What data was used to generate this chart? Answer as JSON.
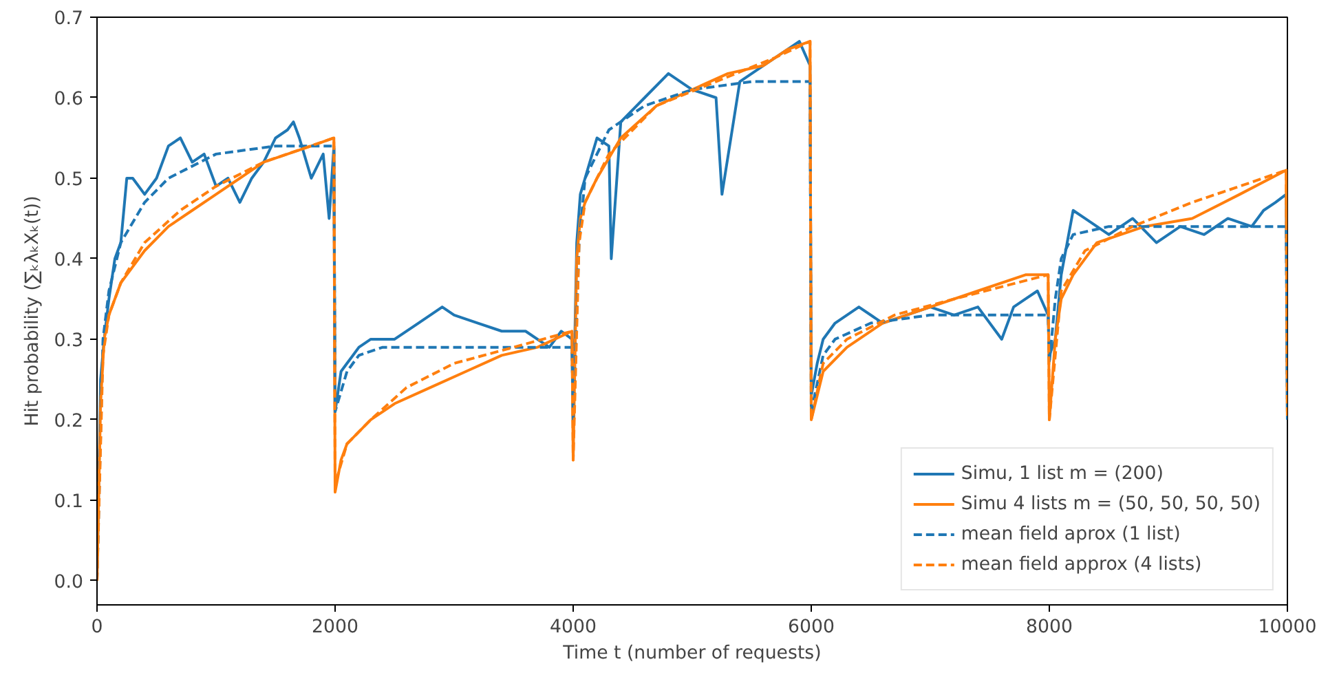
{
  "chart_data": {
    "type": "line",
    "xlabel": "Time t (number of requests)",
    "ylabel": "Hit probability (∑ₖλₖXₖ(t))",
    "xlim": [
      0,
      10000
    ],
    "ylim": [
      -0.03,
      0.7
    ],
    "xticks": [
      0,
      2000,
      4000,
      6000,
      8000,
      10000
    ],
    "yticks": [
      {
        "value": 0,
        "label": "0.0"
      },
      0.1,
      0.2,
      0.3,
      0.4,
      0.5,
      0.6,
      0.7
    ],
    "grid": false,
    "legend": "bottom right",
    "series": [
      {
        "name": "Simu, 1 list m = (200)",
        "color": "#1f77b4",
        "line_style": "solid",
        "x": [
          0,
          30,
          60,
          100,
          150,
          200,
          250,
          300,
          400,
          500,
          600,
          700,
          800,
          900,
          1000,
          1100,
          1200,
          1300,
          1400,
          1500,
          1600,
          1650,
          1700,
          1800,
          1900,
          1950,
          1990,
          2000,
          2050,
          2100,
          2200,
          2300,
          2500,
          2700,
          2900,
          3000,
          3200,
          3400,
          3600,
          3800,
          3900,
          3990,
          4000,
          4030,
          4060,
          4100,
          4200,
          4300,
          4320,
          4400,
          4600,
          4800,
          5000,
          5200,
          5250,
          5400,
          5600,
          5800,
          5900,
          5990,
          6000,
          6050,
          6100,
          6200,
          6400,
          6600,
          6800,
          7000,
          7200,
          7400,
          7600,
          7700,
          7800,
          7900,
          7990,
          8000,
          8050,
          8100,
          8200,
          8300,
          8500,
          8700,
          8900,
          9100,
          9300,
          9500,
          9700,
          9800,
          9900,
          9990,
          10000
        ],
        "values": [
          0,
          0.25,
          0.3,
          0.35,
          0.4,
          0.42,
          0.5,
          0.5,
          0.48,
          0.5,
          0.54,
          0.55,
          0.52,
          0.53,
          0.49,
          0.5,
          0.47,
          0.5,
          0.52,
          0.55,
          0.56,
          0.57,
          0.55,
          0.5,
          0.53,
          0.45,
          0.54,
          0.21,
          0.26,
          0.27,
          0.29,
          0.3,
          0.3,
          0.32,
          0.34,
          0.33,
          0.32,
          0.31,
          0.31,
          0.29,
          0.31,
          0.3,
          0.2,
          0.42,
          0.48,
          0.5,
          0.55,
          0.54,
          0.4,
          0.57,
          0.6,
          0.63,
          0.61,
          0.6,
          0.48,
          0.62,
          0.64,
          0.66,
          0.67,
          0.64,
          0.23,
          0.27,
          0.3,
          0.32,
          0.34,
          0.32,
          0.33,
          0.34,
          0.33,
          0.34,
          0.3,
          0.34,
          0.35,
          0.36,
          0.33,
          0.28,
          0.3,
          0.38,
          0.46,
          0.45,
          0.43,
          0.45,
          0.42,
          0.44,
          0.43,
          0.45,
          0.44,
          0.46,
          0.47,
          0.48,
          0.2
        ]
      },
      {
        "name": "Simu 4 lists m = (50, 50, 50, 50)",
        "color": "#ff7f0e",
        "line_style": "solid",
        "x": [
          0,
          30,
          60,
          100,
          200,
          300,
          400,
          600,
          800,
          1000,
          1200,
          1400,
          1600,
          1800,
          1990,
          2000,
          2050,
          2100,
          2300,
          2500,
          2800,
          3100,
          3400,
          3700,
          3990,
          4000,
          4030,
          4060,
          4100,
          4200,
          4400,
          4700,
          5000,
          5300,
          5600,
          5800,
          5990,
          6000,
          6100,
          6300,
          6600,
          7000,
          7400,
          7800,
          7990,
          8000,
          8050,
          8100,
          8200,
          8400,
          8800,
          9200,
          9600,
          9990,
          10000
        ],
        "values": [
          0,
          0.22,
          0.3,
          0.33,
          0.37,
          0.39,
          0.41,
          0.44,
          0.46,
          0.48,
          0.5,
          0.52,
          0.53,
          0.54,
          0.55,
          0.11,
          0.15,
          0.17,
          0.2,
          0.22,
          0.24,
          0.26,
          0.28,
          0.29,
          0.31,
          0.15,
          0.4,
          0.45,
          0.47,
          0.5,
          0.55,
          0.59,
          0.61,
          0.63,
          0.64,
          0.66,
          0.67,
          0.2,
          0.26,
          0.29,
          0.32,
          0.34,
          0.36,
          0.38,
          0.38,
          0.2,
          0.3,
          0.35,
          0.38,
          0.42,
          0.44,
          0.45,
          0.48,
          0.51,
          0.2
        ]
      },
      {
        "name": "mean field aprox (1 list)",
        "color": "#1f77b4",
        "line_style": "dashed",
        "x": [
          0,
          50,
          100,
          200,
          400,
          600,
          1000,
          1500,
          1990,
          2000,
          2100,
          2200,
          2400,
          3000,
          3990,
          4000,
          4050,
          4100,
          4300,
          4600,
          5000,
          5500,
          5990,
          6000,
          6100,
          6200,
          6500,
          7000,
          7990,
          8000,
          8050,
          8100,
          8200,
          8500,
          9000,
          9990,
          10000
        ],
        "values": [
          0,
          0.3,
          0.36,
          0.42,
          0.47,
          0.5,
          0.53,
          0.54,
          0.54,
          0.21,
          0.26,
          0.28,
          0.29,
          0.29,
          0.29,
          0.2,
          0.42,
          0.5,
          0.56,
          0.59,
          0.61,
          0.62,
          0.62,
          0.21,
          0.28,
          0.3,
          0.32,
          0.33,
          0.33,
          0.27,
          0.35,
          0.4,
          0.43,
          0.44,
          0.44,
          0.44,
          0.2
        ]
      },
      {
        "name": "mean field approx (4 lists)",
        "color": "#ff7f0e",
        "line_style": "dashed",
        "x": [
          0,
          50,
          100,
          200,
          400,
          700,
          1000,
          1400,
          1990,
          2000,
          2100,
          2300,
          2600,
          3000,
          3500,
          3990,
          4000,
          4050,
          4100,
          4300,
          4700,
          5200,
          5700,
          5990,
          6000,
          6100,
          6300,
          6700,
          7200,
          7990,
          8000,
          8100,
          8300,
          8700,
          9200,
          9600,
          9990,
          10000
        ],
        "values": [
          0,
          0.28,
          0.33,
          0.37,
          0.42,
          0.46,
          0.49,
          0.52,
          0.55,
          0.12,
          0.17,
          0.2,
          0.24,
          0.27,
          0.29,
          0.31,
          0.15,
          0.42,
          0.47,
          0.53,
          0.59,
          0.62,
          0.65,
          0.67,
          0.2,
          0.27,
          0.3,
          0.33,
          0.35,
          0.38,
          0.2,
          0.36,
          0.41,
          0.44,
          0.47,
          0.49,
          0.51,
          0.2
        ]
      }
    ]
  }
}
